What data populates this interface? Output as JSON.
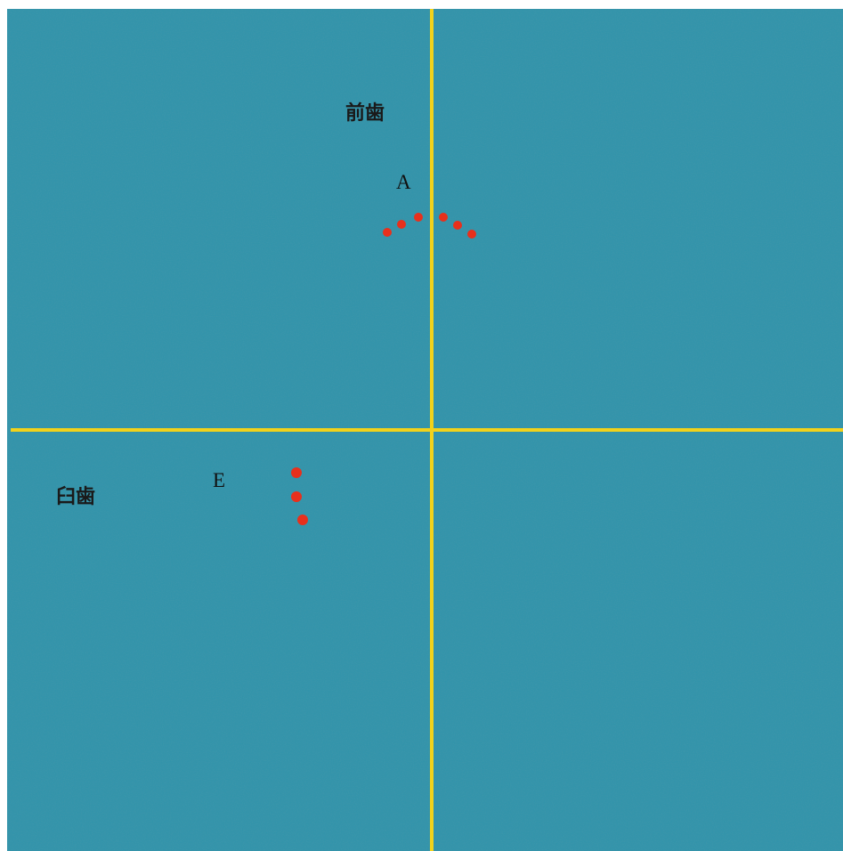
{
  "diagram": {
    "background_color": "#2d93ab",
    "axis_color": "#f2d21b",
    "dot_color": "#e8301c",
    "region_labels": {
      "front_teeth": "前歯",
      "molars": "臼歯"
    },
    "point_labels": {
      "a": "A",
      "e": "E"
    }
  }
}
